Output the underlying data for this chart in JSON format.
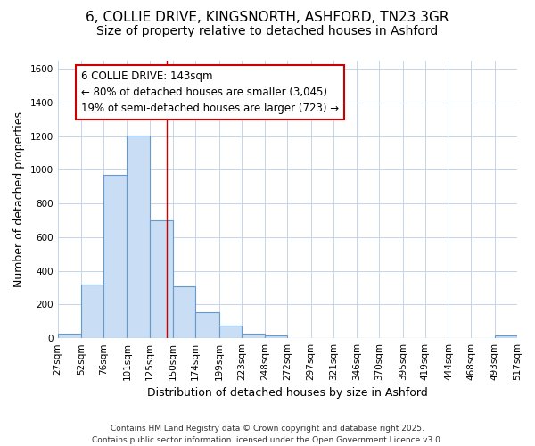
{
  "title_line1": "6, COLLIE DRIVE, KINGSNORTH, ASHFORD, TN23 3GR",
  "title_line2": "Size of property relative to detached houses in Ashford",
  "xlabel": "Distribution of detached houses by size in Ashford",
  "ylabel": "Number of detached properties",
  "bin_edges": [
    27,
    52,
    76,
    101,
    125,
    150,
    174,
    199,
    223,
    248,
    272,
    297,
    321,
    346,
    370,
    395,
    419,
    444,
    468,
    493,
    517
  ],
  "bar_heights": [
    25,
    320,
    970,
    1205,
    700,
    310,
    155,
    75,
    25,
    15,
    0,
    0,
    0,
    0,
    0,
    0,
    0,
    0,
    0,
    15
  ],
  "bar_color": "#c9ddf5",
  "bar_edge_color": "#6699cc",
  "red_line_x": 143,
  "annotation_line1": "6 COLLIE DRIVE: 143sqm",
  "annotation_line2": "← 80% of detached houses are smaller (3,045)",
  "annotation_line3": "19% of semi-detached houses are larger (723) →",
  "annotation_border_color": "#cc0000",
  "annotation_bg": "#ffffff",
  "ylim_max": 1650,
  "yticks": [
    0,
    200,
    400,
    600,
    800,
    1000,
    1200,
    1400,
    1600
  ],
  "grid_color": "#c5d5e8",
  "bg_color": "#ffffff",
  "footer_line1": "Contains HM Land Registry data © Crown copyright and database right 2025.",
  "footer_line2": "Contains public sector information licensed under the Open Government Licence v3.0.",
  "title_fontsize": 11,
  "subtitle_fontsize": 10,
  "axis_label_fontsize": 9,
  "tick_fontsize": 7.5,
  "annotation_fontsize": 8.5,
  "footer_fontsize": 6.5
}
